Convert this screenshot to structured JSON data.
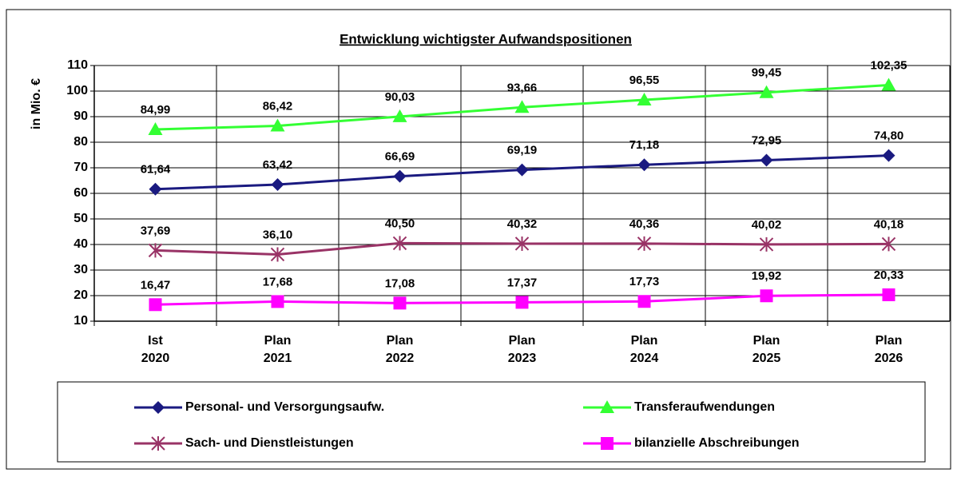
{
  "chart_data": {
    "type": "line",
    "title": "Entwicklung wichtigster Aufwandspositionen",
    "y_label": "in Mio. €",
    "categories": [
      "Ist 2020",
      "Plan 2021",
      "Plan 2022",
      "Plan 2023",
      "Plan 2024",
      "Plan 2025",
      "Plan 2026"
    ],
    "ylim": [
      10,
      110
    ],
    "yticks": [
      10,
      20,
      30,
      40,
      50,
      60,
      70,
      80,
      90,
      100,
      110
    ],
    "grid": true,
    "legend": "bottom",
    "series": [
      {
        "name": "Personal- und Versorgungsaufw.",
        "color": "#1a1a80",
        "marker": "diamond",
        "values": [
          61.64,
          63.42,
          66.69,
          69.19,
          71.18,
          72.95,
          74.8
        ],
        "value_labels": [
          "61,64",
          "63,42",
          "66,69",
          "69,19",
          "71,18",
          "72,95",
          "74,80"
        ]
      },
      {
        "name": "Transferaufwendungen",
        "color": "#33ff33",
        "marker": "triangle",
        "values": [
          84.99,
          86.42,
          90.03,
          93.66,
          96.55,
          99.45,
          102.35
        ],
        "value_labels": [
          "84,99",
          "86,42",
          "90,03",
          "93,66",
          "96,55",
          "99,45",
          "102,35"
        ]
      },
      {
        "name": "Sach- und Dienstleistungen",
        "color": "#993366",
        "marker": "asterisk",
        "values": [
          37.69,
          36.1,
          40.5,
          40.32,
          40.36,
          40.02,
          40.18
        ],
        "value_labels": [
          "37,69",
          "36,10",
          "40,50",
          "40,32",
          "40,36",
          "40,02",
          "40,18"
        ]
      },
      {
        "name": "bilanzielle Abschreibungen",
        "color": "#ff00ff",
        "marker": "square",
        "values": [
          16.47,
          17.68,
          17.08,
          17.37,
          17.73,
          19.92,
          20.33
        ],
        "value_labels": [
          "16,47",
          "17,68",
          "17,08",
          "17,37",
          "17,73",
          "19,92",
          "20,33"
        ]
      }
    ]
  }
}
